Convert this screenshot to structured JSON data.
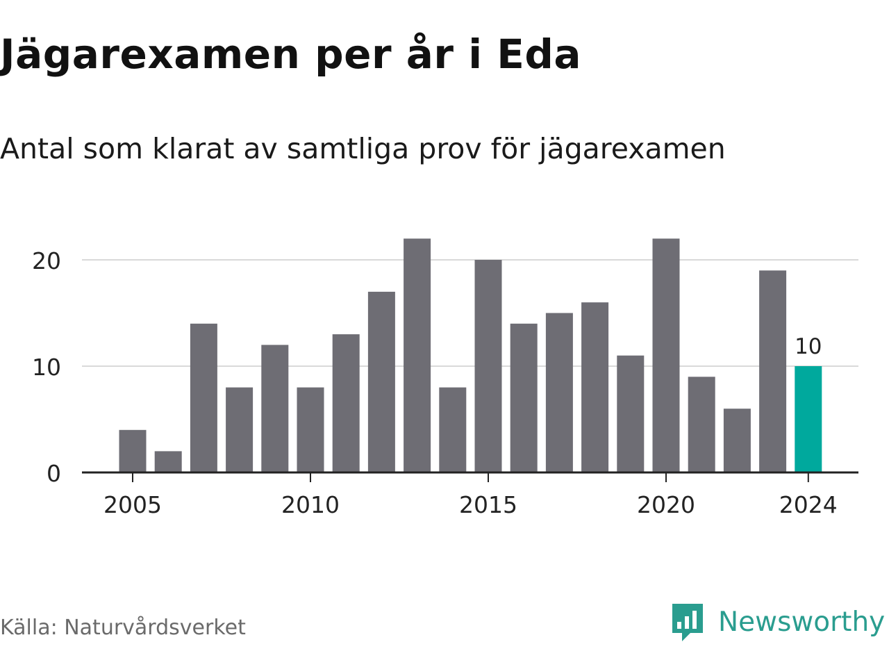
{
  "header": {
    "title": "Jägarexamen per år i Eda",
    "subtitle": "Antal som klarat av samtliga prov för jägarexamen"
  },
  "footer": {
    "source": "Källa: Naturvårdsverket",
    "brand": "Newsworthy"
  },
  "colors": {
    "bar": "#6e6d74",
    "highlight": "#00a99d",
    "grid": "#d9d9d9",
    "axis": "#222222",
    "brand": "#2a9d8f"
  },
  "chart_data": {
    "type": "bar",
    "title": "Jägarexamen per år i Eda",
    "subtitle": "Antal som klarat av samtliga prov för jägarexamen",
    "categories": [
      2005,
      2006,
      2007,
      2008,
      2009,
      2010,
      2011,
      2012,
      2013,
      2014,
      2015,
      2016,
      2017,
      2018,
      2019,
      2020,
      2021,
      2022,
      2023,
      2024
    ],
    "values": [
      4,
      2,
      14,
      8,
      12,
      8,
      13,
      17,
      22,
      8,
      20,
      14,
      15,
      16,
      11,
      22,
      9,
      6,
      19,
      10
    ],
    "x_tick_labels": [
      "2005",
      "2010",
      "2015",
      "2020",
      "2024"
    ],
    "y_ticks": [
      0,
      10,
      20
    ],
    "ylim": [
      0,
      22
    ],
    "highlight": {
      "category": 2024,
      "label": "10"
    },
    "grid": true,
    "legend": "none"
  }
}
